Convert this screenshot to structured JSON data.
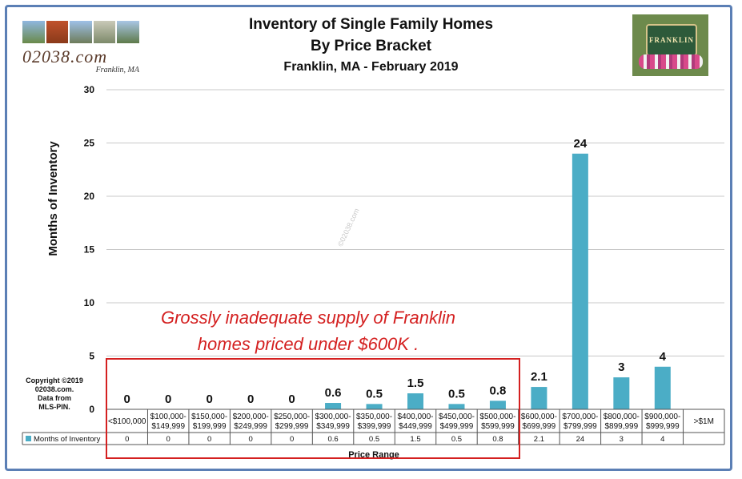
{
  "title_lines": [
    "Inventory of Single Family Homes",
    "By Price Bracket",
    "Franklin, MA  - February 2019"
  ],
  "logo_left": {
    "site": "02038.com",
    "town": "Franklin, MA"
  },
  "logo_right": {
    "sign": "FRANKLIN"
  },
  "copyright_lines": [
    "Copyright ©2019",
    "02038.com.",
    "Data from",
    "MLS-PIN."
  ],
  "callout_lines": [
    "Grossly inadequate supply of Franklin",
    "homes priced under $600K ."
  ],
  "watermark": "©02038.com",
  "colors": {
    "bar": "#4badc6",
    "callout": "#d42020",
    "frame": "#5b7fb5",
    "grid": "#c8c8c8"
  },
  "chart_data": {
    "type": "bar",
    "title": "Inventory of Single Family Homes By Price Bracket",
    "ylabel": "Months of Inventory",
    "xlabel": "Price Range",
    "ylim": [
      0,
      30
    ],
    "yticks": [
      0,
      5,
      10,
      15,
      20,
      25,
      30
    ],
    "grid": true,
    "categories": [
      [
        "<$100,000"
      ],
      [
        "$100,000-",
        "$149,999"
      ],
      [
        "$150,000-",
        "$199,999"
      ],
      [
        "$200,000-",
        "$249,999"
      ],
      [
        "$250,000-",
        "$299,999"
      ],
      [
        "$300,000-",
        "$349,999"
      ],
      [
        "$350,000-",
        "$399,999"
      ],
      [
        "$400,000-",
        "$449,999"
      ],
      [
        "$450,000-",
        "$499,999"
      ],
      [
        "$500,000-",
        "$599,999"
      ],
      [
        "$600,000-",
        "$699,999"
      ],
      [
        "$700,000-",
        "$799,999"
      ],
      [
        "$800,000-",
        "$899,999"
      ],
      [
        "$900,000-",
        "$999,999"
      ],
      [
        ">$1M"
      ]
    ],
    "series": [
      {
        "name": "Months of Inventory",
        "values": [
          0,
          0,
          0,
          0,
          0,
          0.6,
          0.5,
          1.5,
          0.5,
          0.8,
          2.1,
          24,
          3,
          4,
          null
        ],
        "data_labels": [
          "0",
          "0",
          "0",
          "0",
          "0",
          "0.6",
          "0.5",
          "1.5",
          "0.5",
          "0.8",
          "2.1",
          "24",
          "3",
          "4",
          ""
        ],
        "table_values": [
          "0",
          "0",
          "0",
          "0",
          "0",
          "0.6",
          "0.5",
          "1.5",
          "0.5",
          "0.8",
          "2.1",
          "24",
          "3",
          "4",
          ""
        ]
      }
    ]
  }
}
